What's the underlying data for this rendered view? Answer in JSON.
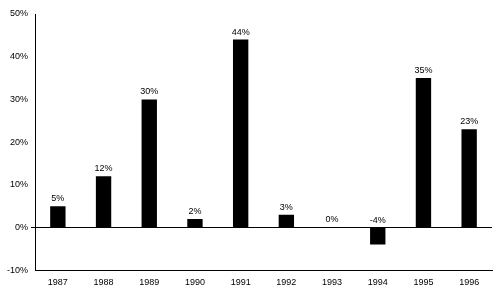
{
  "chart_data": {
    "type": "bar",
    "categories": [
      "1987",
      "1988",
      "1989",
      "1990",
      "1991",
      "1992",
      "1993",
      "1994",
      "1995",
      "1996"
    ],
    "values": [
      5,
      12,
      30,
      2,
      44,
      3,
      0,
      -4,
      35,
      23
    ],
    "value_labels": [
      "5%",
      "12%",
      "30%",
      "2%",
      "44%",
      "3%",
      "0%",
      "-4%",
      "35%",
      "23%"
    ],
    "color": "#000000",
    "ylim": [
      -10,
      50
    ],
    "yticks": [
      {
        "value": -10,
        "label": "-10%"
      },
      {
        "value": 0,
        "label": "0%"
      },
      {
        "value": 10,
        "label": "10%"
      },
      {
        "value": 20,
        "label": "20%"
      },
      {
        "value": 30,
        "label": "30%"
      },
      {
        "value": 40,
        "label": "40%"
      },
      {
        "value": 50,
        "label": "50%"
      }
    ],
    "grid": false,
    "data_labels": true
  }
}
